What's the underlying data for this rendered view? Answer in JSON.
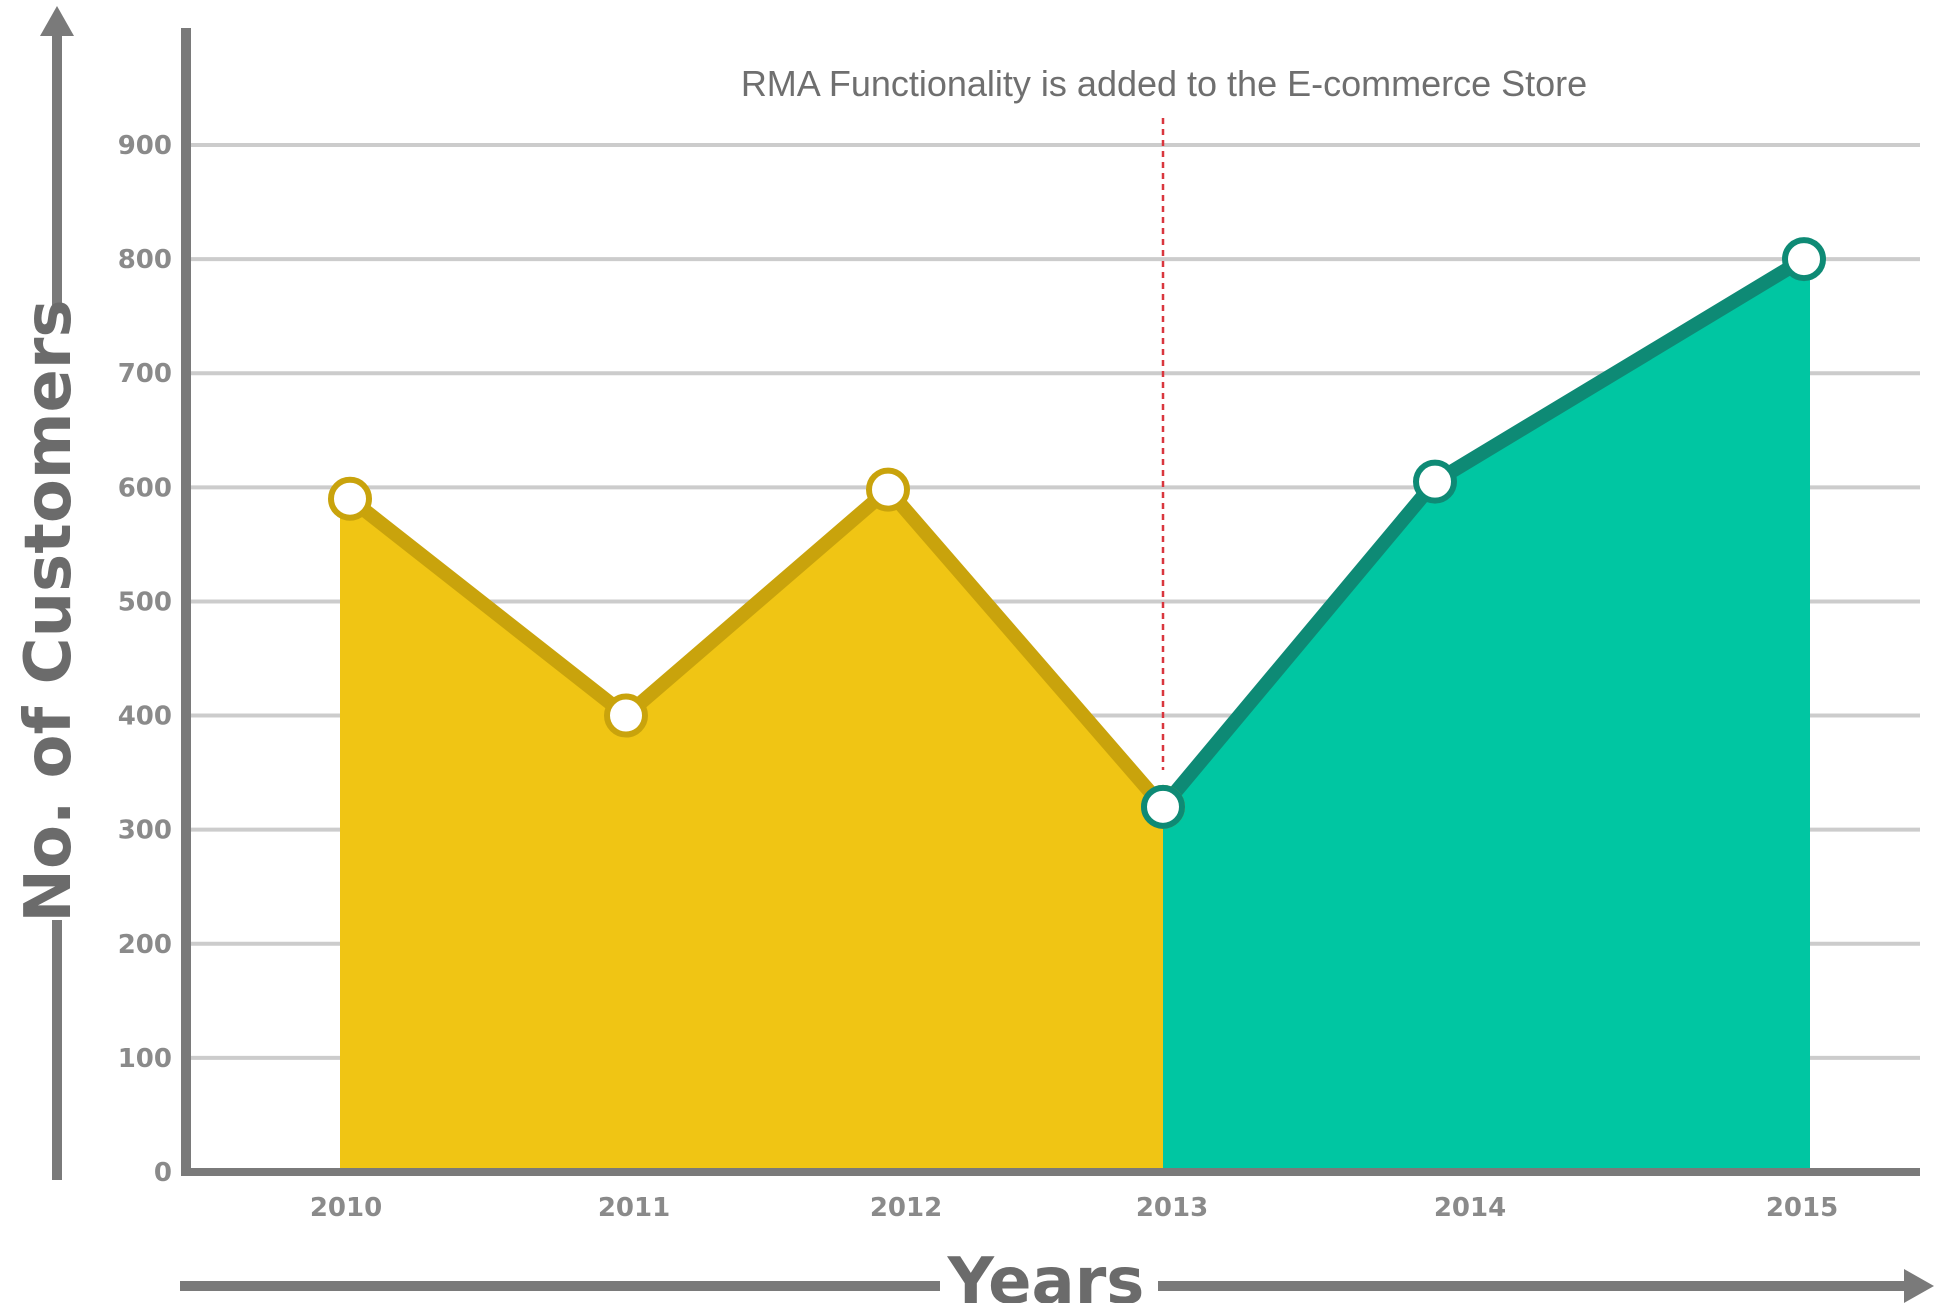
{
  "chart_data": {
    "type": "area",
    "title": "",
    "xlabel": "Years",
    "ylabel": "No. of Customers",
    "categories": [
      "2010",
      "2011",
      "2012",
      "2013",
      "2014",
      "2015"
    ],
    "series": [
      {
        "values": [
          590,
          400,
          598,
          320,
          null,
          null
        ],
        "color": "#f0c514",
        "line_color": "#c9a30c"
      },
      {
        "values": [
          null,
          null,
          null,
          320,
          605,
          800
        ],
        "color": "#00c6a2",
        "line_color": "#0e8a75"
      }
    ],
    "ylim": [
      0,
      900
    ],
    "yticks": [
      0,
      100,
      200,
      300,
      400,
      500,
      600,
      700,
      800,
      900
    ],
    "grid": true,
    "annotation": {
      "text": "RMA Functionality is added to the E-commerce Store",
      "x": "2013",
      "line_color": "#d9363e"
    },
    "axis_color": "#7a7a7a",
    "grid_color": "#cccccc"
  }
}
